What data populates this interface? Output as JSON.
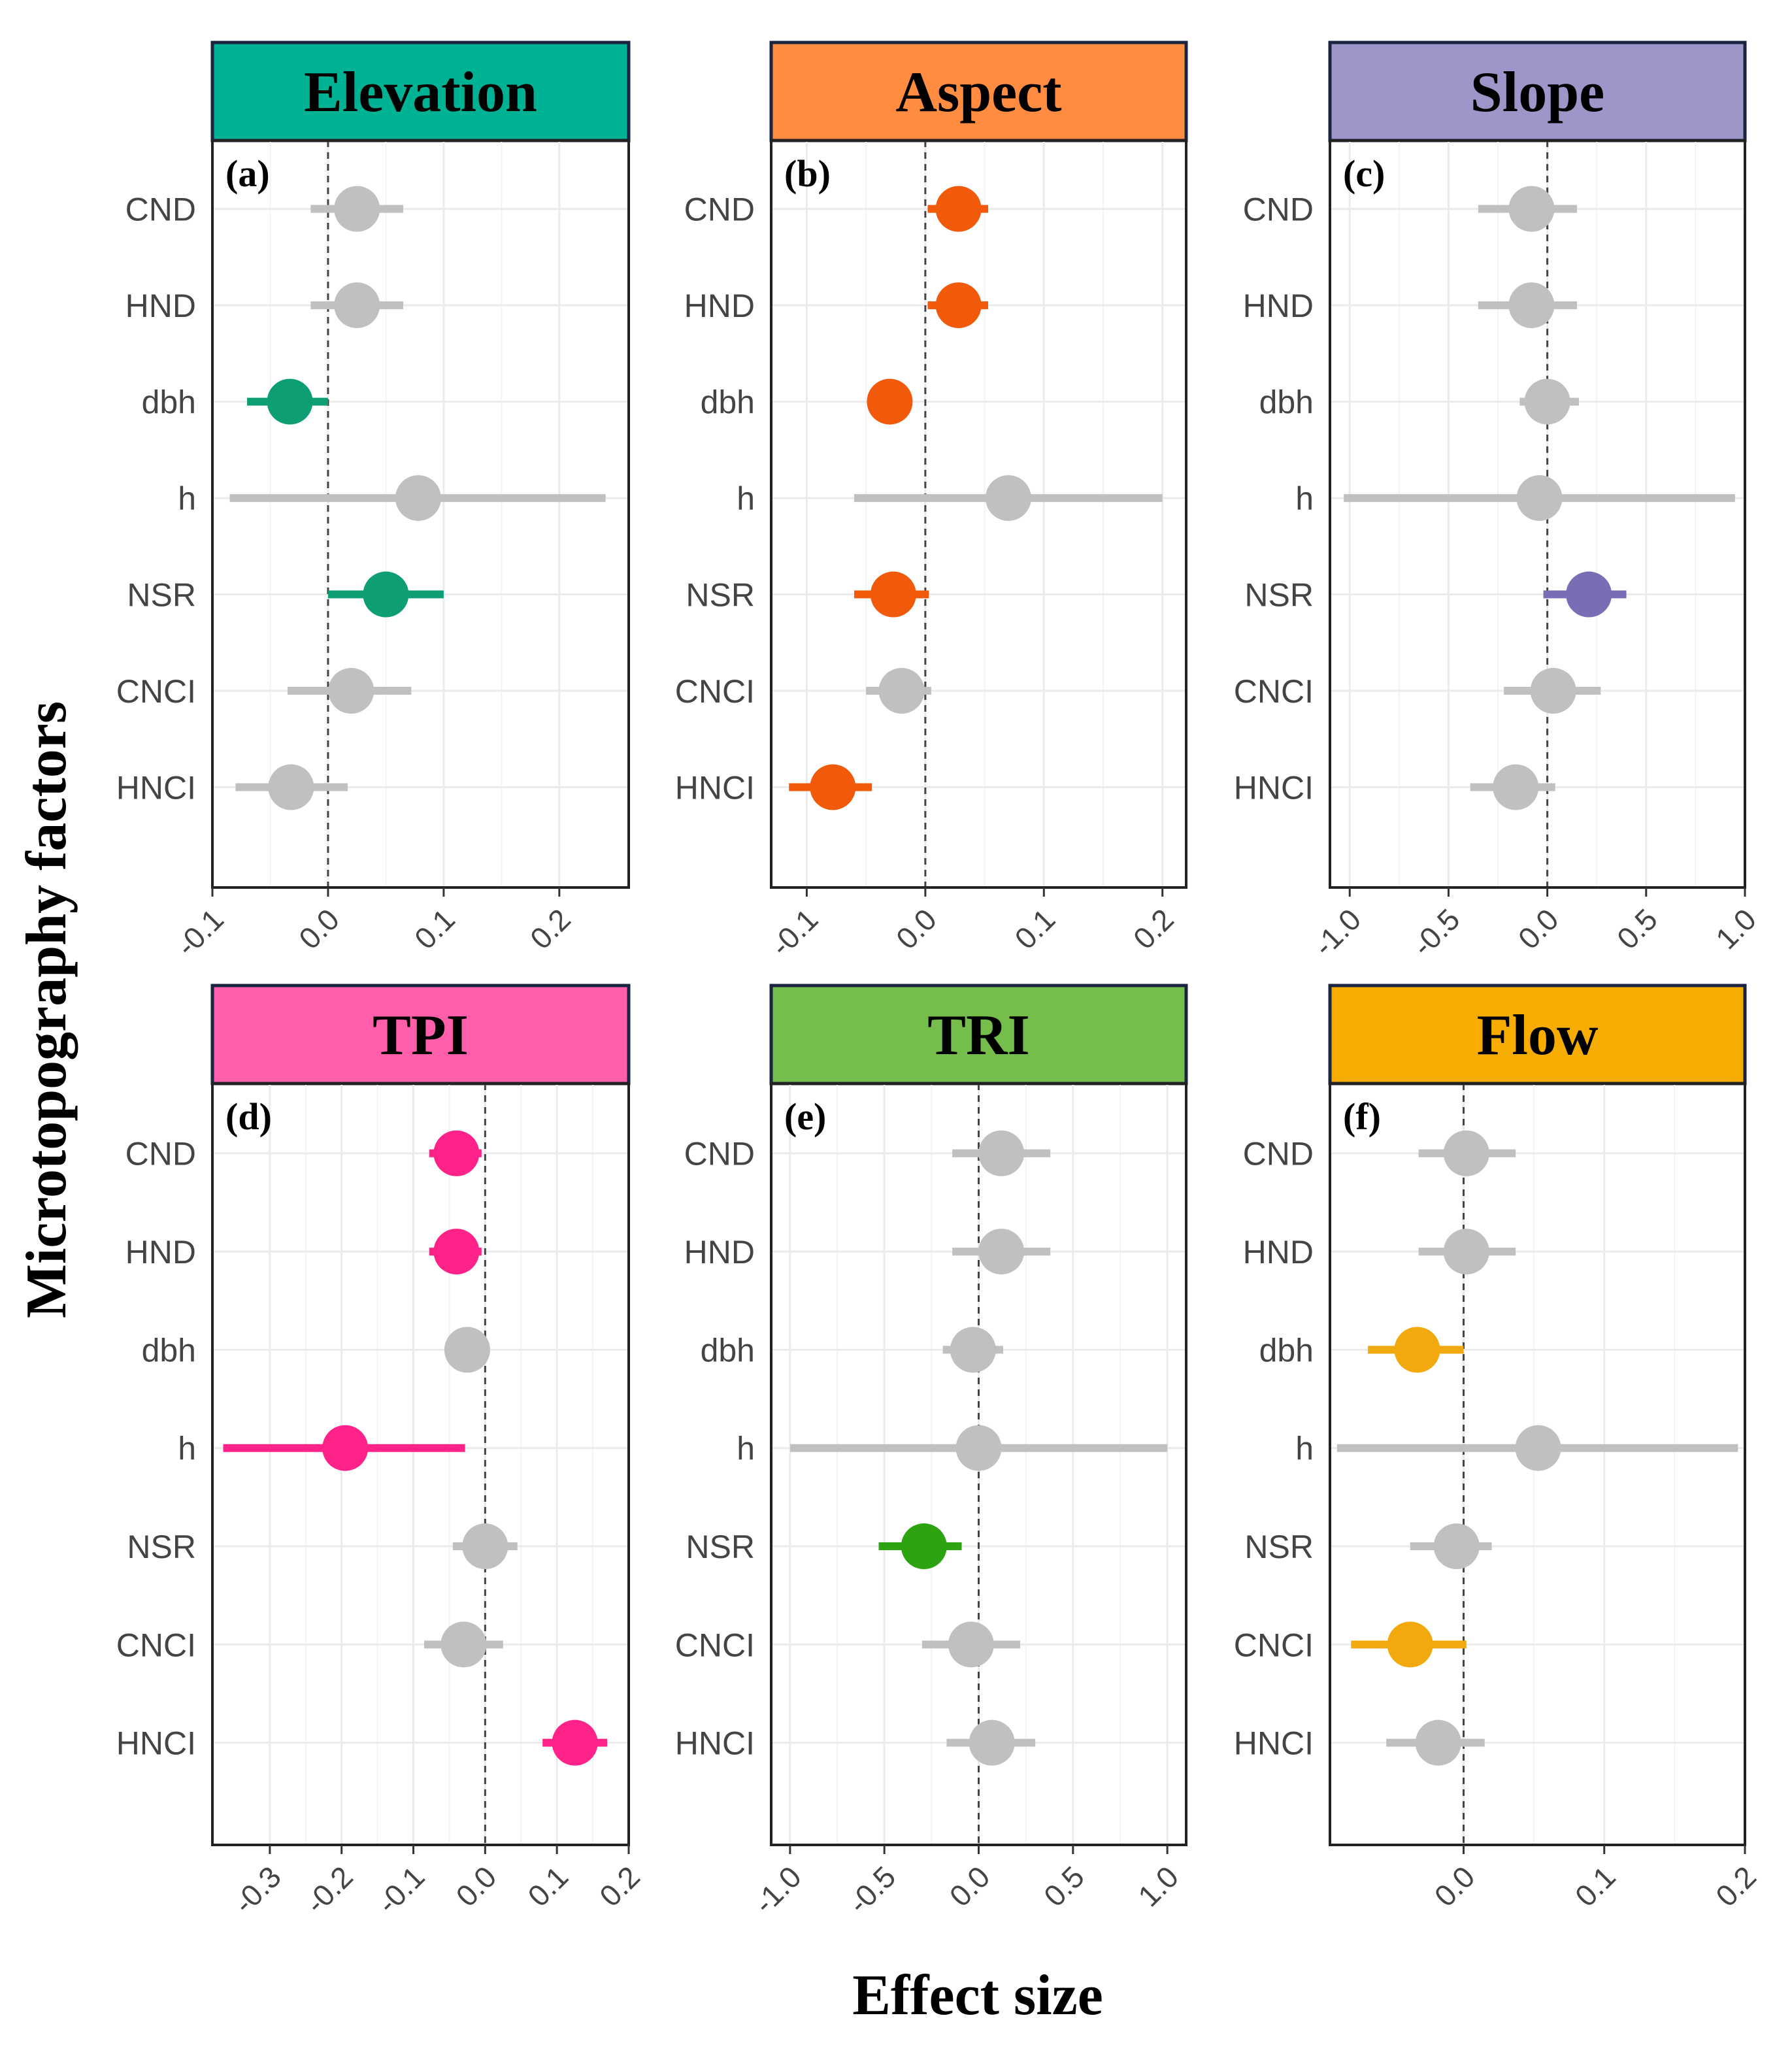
{
  "figure": {
    "ylabel": "Microtopography factors",
    "xlabel": "Effect size"
  },
  "chart_data": [
    {
      "type": "forest",
      "title": "Elevation",
      "panel_label": "(a)",
      "header_color": "#00B294",
      "sig_color": "#0E9E73",
      "categories": [
        "CND",
        "HND",
        "dbh",
        "h",
        "NSR",
        "CNCI",
        "HNCI"
      ],
      "xlim": [
        -0.1,
        0.26
      ],
      "xticks": [
        -0.1,
        0.0,
        0.1,
        0.2
      ],
      "xtick_labels": [
        "-0.1",
        "0.0",
        "0.1",
        "0.2"
      ],
      "estimates": [
        0.025,
        0.025,
        -0.033,
        0.078,
        0.05,
        0.02,
        -0.032
      ],
      "lower": [
        -0.015,
        -0.015,
        -0.07,
        -0.085,
        0.0,
        -0.035,
        -0.08
      ],
      "upper": [
        0.065,
        0.065,
        0.0,
        0.24,
        0.1,
        0.072,
        0.017
      ],
      "significant": [
        false,
        false,
        true,
        false,
        true,
        false,
        false
      ]
    },
    {
      "type": "forest",
      "title": "Aspect",
      "panel_label": "(b)",
      "header_color": "#FF8C40",
      "sig_color": "#F05A0A",
      "categories": [
        "CND",
        "HND",
        "dbh",
        "h",
        "NSR",
        "CNCI",
        "HNCI"
      ],
      "xlim": [
        -0.13,
        0.22
      ],
      "xticks": [
        -0.1,
        0.0,
        0.1,
        0.2
      ],
      "xtick_labels": [
        "-0.1",
        "0.0",
        "0.1",
        "0.2"
      ],
      "estimates": [
        0.028,
        0.028,
        -0.03,
        0.07,
        -0.027,
        -0.02,
        -0.078
      ],
      "lower": [
        0.002,
        0.002,
        -0.048,
        -0.06,
        -0.06,
        -0.05,
        -0.115
      ],
      "upper": [
        0.053,
        0.053,
        -0.012,
        0.2,
        0.003,
        0.005,
        -0.045
      ],
      "significant": [
        true,
        true,
        true,
        false,
        true,
        false,
        true
      ]
    },
    {
      "type": "forest",
      "title": "Slope",
      "panel_label": "(c)",
      "header_color": "#9D96C8",
      "sig_color": "#7A6DB5",
      "categories": [
        "CND",
        "HND",
        "dbh",
        "h",
        "NSR",
        "CNCI",
        "HNCI"
      ],
      "xlim": [
        -1.1,
        1.0
      ],
      "xticks": [
        -1.0,
        -0.5,
        0.0,
        0.5,
        1.0
      ],
      "xtick_labels": [
        "-1.0",
        "-0.5",
        "0.0",
        "0.5",
        "1.0"
      ],
      "estimates": [
        -0.08,
        -0.08,
        0.0,
        -0.04,
        0.21,
        0.03,
        -0.16
      ],
      "lower": [
        -0.35,
        -0.35,
        -0.14,
        -1.03,
        -0.02,
        -0.22,
        -0.39
      ],
      "upper": [
        0.15,
        0.15,
        0.16,
        0.95,
        0.4,
        0.27,
        0.04
      ],
      "significant": [
        false,
        false,
        false,
        false,
        true,
        false,
        false
      ]
    },
    {
      "type": "forest",
      "title": "TPI",
      "panel_label": "(d)",
      "header_color": "#FF5EAA",
      "sig_color": "#FF2289",
      "categories": [
        "CND",
        "HND",
        "dbh",
        "h",
        "NSR",
        "CNCI",
        "HNCI"
      ],
      "xlim": [
        -0.38,
        0.2
      ],
      "xticks": [
        -0.3,
        -0.2,
        -0.1,
        0.0,
        0.1,
        0.2
      ],
      "xtick_labels": [
        "-0.3",
        "-0.2",
        "-0.1",
        "0.0",
        "0.1",
        "0.2"
      ],
      "estimates": [
        -0.04,
        -0.04,
        -0.025,
        -0.195,
        0.0,
        -0.03,
        0.125
      ],
      "lower": [
        -0.078,
        -0.078,
        -0.045,
        -0.365,
        -0.045,
        -0.085,
        0.08
      ],
      "upper": [
        -0.005,
        -0.005,
        -0.005,
        -0.028,
        0.045,
        0.025,
        0.17
      ],
      "significant": [
        true,
        true,
        false,
        true,
        false,
        false,
        true
      ]
    },
    {
      "type": "forest",
      "title": "TRI",
      "panel_label": "(e)",
      "header_color": "#76BE4C",
      "sig_color": "#2EA312",
      "categories": [
        "CND",
        "HND",
        "dbh",
        "h",
        "NSR",
        "CNCI",
        "HNCI"
      ],
      "xlim": [
        -1.1,
        1.1
      ],
      "xticks": [
        -1.0,
        -0.5,
        0.0,
        0.5,
        1.0
      ],
      "xtick_labels": [
        "-1.0",
        "-0.5",
        "0.0",
        "0.5",
        "1.0"
      ],
      "estimates": [
        0.12,
        0.12,
        -0.03,
        0.0,
        -0.29,
        -0.04,
        0.07
      ],
      "lower": [
        -0.14,
        -0.14,
        -0.19,
        -1.0,
        -0.53,
        -0.3,
        -0.17
      ],
      "upper": [
        0.38,
        0.38,
        0.13,
        1.0,
        -0.09,
        0.22,
        0.3
      ],
      "significant": [
        false,
        false,
        false,
        false,
        true,
        false,
        false
      ]
    },
    {
      "type": "forest",
      "title": "Flow",
      "panel_label": "(f)",
      "header_color": "#F6AC00",
      "sig_color": "#F2A90E",
      "categories": [
        "CND",
        "HND",
        "dbh",
        "h",
        "NSR",
        "CNCI",
        "HNCI"
      ],
      "xlim": [
        -0.095,
        0.2
      ],
      "xticks": [
        0.0,
        0.1,
        0.2
      ],
      "xtick_labels": [
        "0.0",
        "0.1",
        "0.2"
      ],
      "estimates": [
        0.002,
        0.002,
        -0.033,
        0.053,
        -0.005,
        -0.038,
        -0.018
      ],
      "lower": [
        -0.032,
        -0.032,
        -0.068,
        -0.09,
        -0.038,
        -0.08,
        -0.055
      ],
      "upper": [
        0.037,
        0.037,
        0.0,
        0.195,
        0.02,
        0.002,
        0.015
      ],
      "significant": [
        false,
        false,
        true,
        false,
        false,
        true,
        false
      ]
    }
  ]
}
